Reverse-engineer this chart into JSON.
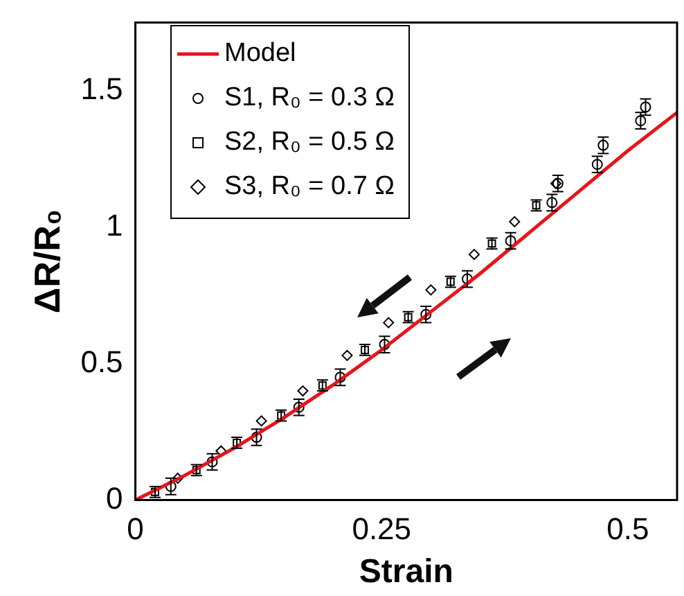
{
  "chart_data": {
    "type": "scatter",
    "xlabel": "Strain",
    "ylabel": "ΔR/R₀",
    "xlim": [
      0,
      0.55
    ],
    "xticks": [
      0,
      0.25,
      0.5
    ],
    "ylim": [
      0,
      1.75
    ],
    "yticks": [
      0,
      0.5,
      1,
      1.5
    ],
    "grid": false,
    "legend": "top left",
    "series": [
      {
        "name": "Model",
        "type": "line",
        "marker": "none",
        "line_style": "solid",
        "color": "#e8141c",
        "x": [
          0,
          0.05,
          0.1,
          0.15,
          0.2,
          0.25,
          0.3,
          0.35,
          0.4,
          0.45,
          0.5,
          0.55
        ],
        "values": [
          0,
          0.09,
          0.19,
          0.3,
          0.42,
          0.55,
          0.69,
          0.83,
          0.98,
          1.13,
          1.28,
          1.42
        ]
      },
      {
        "name": "S1, R₀ = 0.3 Ω",
        "type": "scatter",
        "marker": "circle",
        "color": "#000000",
        "x": [
          0.036,
          0.078,
          0.123,
          0.166,
          0.208,
          0.253,
          0.295,
          0.337,
          0.381,
          0.423,
          0.429,
          0.469,
          0.475,
          0.513,
          0.518
        ],
        "values": [
          0.05,
          0.14,
          0.23,
          0.34,
          0.45,
          0.57,
          0.68,
          0.81,
          0.95,
          1.09,
          1.16,
          1.23,
          1.3,
          1.39,
          1.44
        ],
        "errors": [
          0.03,
          0.03,
          0.03,
          0.03,
          0.03,
          0.03,
          0.03,
          0.03,
          0.03,
          0.03,
          0.03,
          0.03,
          0.03,
          0.03,
          0.03
        ]
      },
      {
        "name": "S2, R₀ = 0.5 Ω",
        "type": "scatter",
        "marker": "square",
        "color": "#000000",
        "x": [
          0.02,
          0.062,
          0.103,
          0.148,
          0.19,
          0.233,
          0.277,
          0.32,
          0.362,
          0.407
        ],
        "values": [
          0.03,
          0.11,
          0.21,
          0.31,
          0.42,
          0.55,
          0.67,
          0.8,
          0.94,
          1.08
        ],
        "errors": [
          0.02,
          0.02,
          0.02,
          0.02,
          0.02,
          0.02,
          0.02,
          0.02,
          0.02,
          0.02
        ]
      },
      {
        "name": "S3, R₀ = 0.7 Ω",
        "type": "scatter",
        "marker": "diamond",
        "color": "#000000",
        "x": [
          0.043,
          0.087,
          0.128,
          0.17,
          0.215,
          0.257,
          0.3,
          0.344,
          0.385,
          0.427
        ],
        "values": [
          0.08,
          0.18,
          0.29,
          0.4,
          0.53,
          0.65,
          0.77,
          0.9,
          1.02,
          1.16
        ]
      }
    ]
  }
}
